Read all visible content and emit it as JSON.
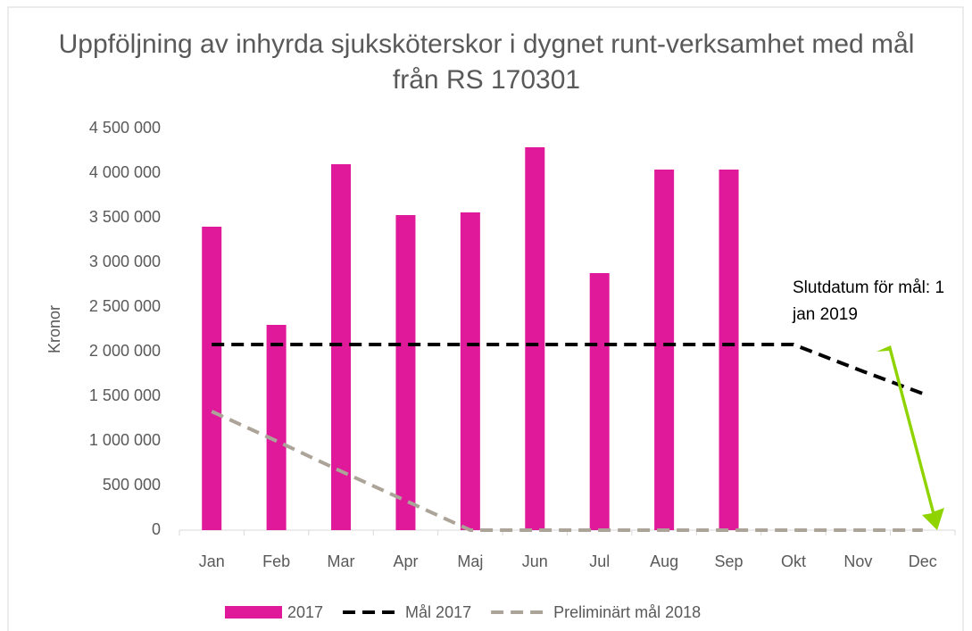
{
  "chart_data": {
    "type": "bar",
    "title": "Uppföljning av inhyrda sjuksköterskor i dygnet runt-verksamhet med mål från RS 170301",
    "y_label": "Kronor",
    "annotation": "Slutdatum för mål: 1 jan 2019",
    "categories": [
      "Jan",
      "Feb",
      "Mar",
      "Apr",
      "Maj",
      "Jun",
      "Jul",
      "Aug",
      "Sep",
      "Okt",
      "Nov",
      "Dec"
    ],
    "series": [
      {
        "name": "2017",
        "type": "bar",
        "color": "#e0199a",
        "values": [
          3400000,
          2300000,
          4100000,
          3530000,
          3560000,
          4290000,
          2880000,
          4040000,
          4040000,
          null,
          null,
          null
        ]
      },
      {
        "name": "Mål 2017",
        "type": "line",
        "color": "#000000",
        "values": [
          2080000,
          2080000,
          2080000,
          2080000,
          2080000,
          2080000,
          2080000,
          2080000,
          2080000,
          2080000,
          1800000,
          1530000
        ]
      },
      {
        "name": "Preliminärt mål 2018",
        "type": "line",
        "color": "#aca498",
        "values": [
          1330000,
          1000000,
          660000,
          330000,
          0,
          0,
          0,
          0,
          0,
          0,
          0,
          0
        ]
      }
    ],
    "ylim": [
      0,
      4500000
    ],
    "yticks": [
      0,
      {
        "value": 500000,
        "label": "500 000"
      },
      {
        "value": 1000000,
        "label": "1 000 000"
      },
      {
        "value": 1500000,
        "label": "1 500 000"
      },
      {
        "value": 2000000,
        "label": "2 000 000"
      },
      {
        "value": 2500000,
        "label": "2 500 000"
      },
      {
        "value": 3000000,
        "label": "3 000 000"
      },
      {
        "value": 3500000,
        "label": "3 500 000"
      },
      {
        "value": 4000000,
        "label": "4 000 000"
      },
      {
        "value": 4500000,
        "label": "4 500 000"
      }
    ],
    "grid": false
  }
}
